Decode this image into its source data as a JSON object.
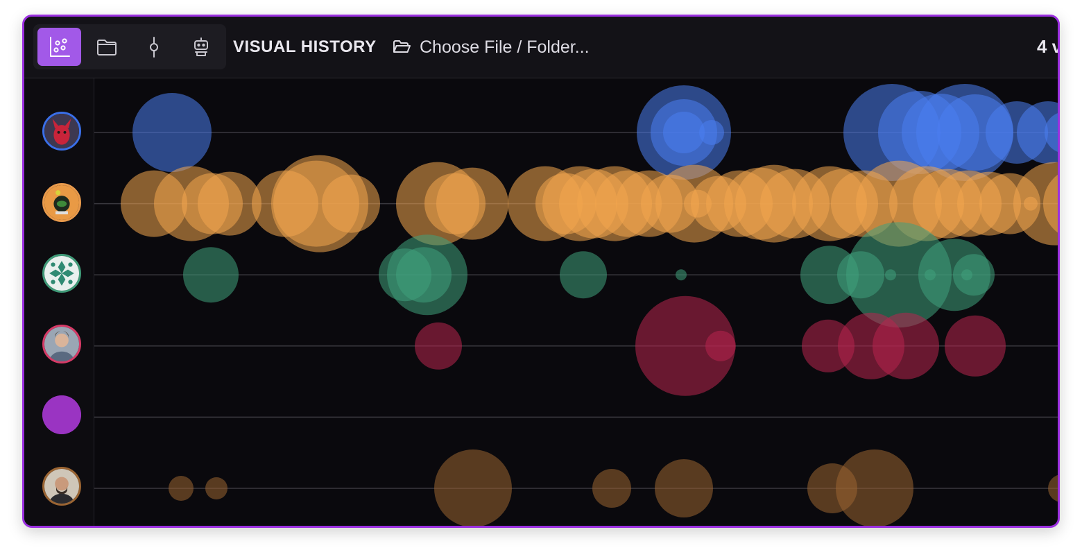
{
  "toolbar": {
    "title": "VISUAL HISTORY",
    "choose_file_label": "Choose File / Folder...",
    "count_label": "4 v",
    "tools": [
      {
        "name": "visual-history-tab",
        "icon": "scatter-chart-icon",
        "active": true
      },
      {
        "name": "files-tab",
        "icon": "folder-icon",
        "active": false
      },
      {
        "name": "commits-tab",
        "icon": "git-commit-icon",
        "active": false
      },
      {
        "name": "bot-tab",
        "icon": "robot-icon",
        "active": false
      }
    ]
  },
  "colors": {
    "accent": "#a259e8",
    "window_border": "#9b2fe0",
    "background": "#0a090d",
    "grid_line": "#3a393f"
  },
  "authors": [
    {
      "avatar": "red-creature-avatar",
      "ring": "#3a6fe8",
      "color": "#4a7ef0"
    },
    {
      "avatar": "green-character-avatar",
      "ring": "#e89a4c",
      "color": "#f2a54e"
    },
    {
      "avatar": "pattern-avatar",
      "ring": "#3f9a78",
      "color": "#3fa07c"
    },
    {
      "avatar": "person-photo-avatar",
      "ring": "#d63a66",
      "color": "#b8244f"
    },
    {
      "avatar": "purple-circle-avatar",
      "ring": "#9a34c2",
      "color": "#9a34c2"
    },
    {
      "avatar": "bearded-person-avatar",
      "ring": "#9a6432",
      "color": "#9a6432"
    }
  ],
  "chart_data": {
    "type": "scatter",
    "title": "",
    "xlabel": "",
    "ylabel": "",
    "rows": 6,
    "series": [
      {
        "row": 0,
        "points": [
          [
            112,
            57
          ],
          [
            850,
            68
          ],
          [
            850,
            48
          ],
          [
            850,
            30
          ],
          [
            890,
            18
          ],
          [
            1150,
            70
          ],
          [
            1190,
            60
          ],
          [
            1220,
            56
          ],
          [
            1255,
            70
          ],
          [
            1270,
            55
          ],
          [
            1330,
            45
          ],
          [
            1375,
            45
          ],
          [
            1400,
            30
          ],
          [
            1430,
            25
          ]
        ]
      },
      {
        "row": 1,
        "points": [
          [
            86,
            48
          ],
          [
            140,
            54
          ],
          [
            170,
            44
          ],
          [
            195,
            46
          ],
          [
            275,
            48
          ],
          [
            320,
            62
          ],
          [
            325,
            70
          ],
          [
            370,
            42
          ],
          [
            495,
            60
          ],
          [
            520,
            44
          ],
          [
            545,
            52
          ],
          [
            650,
            54
          ],
          [
            680,
            44
          ],
          [
            700,
            54
          ],
          [
            720,
            50
          ],
          [
            750,
            54
          ],
          [
            770,
            48
          ],
          [
            800,
            48
          ],
          [
            830,
            42
          ],
          [
            865,
            56
          ],
          [
            870,
            20
          ],
          [
            900,
            40
          ],
          [
            930,
            48
          ],
          [
            960,
            52
          ],
          [
            980,
            56
          ],
          [
            1010,
            50
          ],
          [
            1060,
            54
          ],
          [
            1080,
            50
          ],
          [
            1110,
            48
          ],
          [
            1160,
            62
          ],
          [
            1200,
            54
          ],
          [
            1230,
            50
          ],
          [
            1260,
            48
          ],
          [
            1290,
            46
          ],
          [
            1320,
            44
          ],
          [
            1350,
            10
          ],
          [
            1385,
            60
          ],
          [
            1420,
            52
          ]
        ]
      },
      {
        "row": 2,
        "points": [
          [
            168,
            40
          ],
          [
            448,
            38
          ],
          [
            480,
            58
          ],
          [
            475,
            40
          ],
          [
            705,
            34
          ],
          [
            846,
            8
          ],
          [
            1060,
            42
          ],
          [
            1105,
            34
          ],
          [
            1160,
            76
          ],
          [
            1148,
            8
          ],
          [
            1205,
            8
          ],
          [
            1240,
            52
          ],
          [
            1258,
            8
          ],
          [
            1268,
            30
          ]
        ]
      },
      {
        "row": 3,
        "points": [
          [
            496,
            34
          ],
          [
            852,
            72
          ],
          [
            903,
            22
          ],
          [
            1058,
            38
          ],
          [
            1120,
            48
          ],
          [
            1170,
            48
          ],
          [
            1270,
            44
          ]
        ]
      },
      {
        "row": 4,
        "points": []
      },
      {
        "row": 5,
        "points": [
          [
            125,
            18
          ],
          [
            176,
            16
          ],
          [
            546,
            56
          ],
          [
            746,
            28
          ],
          [
            850,
            42
          ],
          [
            1064,
            36
          ],
          [
            1125,
            56
          ],
          [
            1395,
            20
          ]
        ]
      }
    ]
  }
}
